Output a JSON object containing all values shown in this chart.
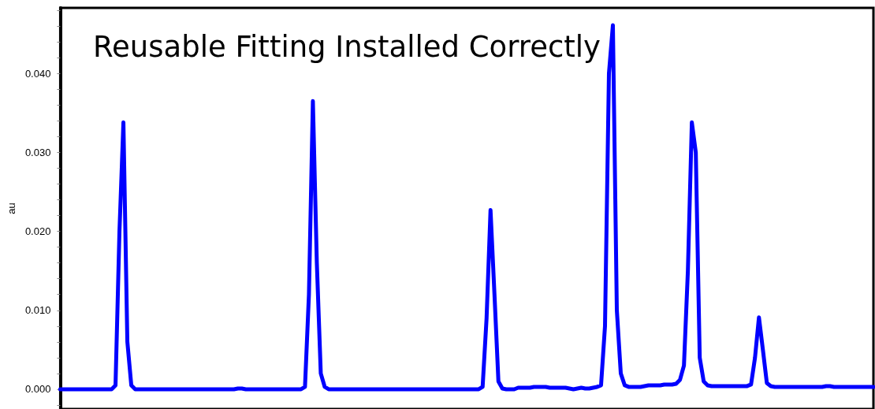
{
  "chart_data": {
    "type": "line",
    "title": "Reusable Fitting Installed Correctly",
    "ylabel": "au",
    "categories": [
      null,
      null,
      null,
      null,
      null,
      null,
      null,
      null,
      null,
      null,
      null,
      null,
      null,
      null,
      null,
      null,
      null,
      null,
      null,
      null,
      null,
      null,
      null,
      null,
      null,
      null,
      null,
      null,
      null,
      null,
      null,
      null,
      null,
      null,
      null,
      null,
      null,
      null,
      null,
      null,
      null,
      null,
      null,
      null,
      null,
      null,
      null,
      null,
      null,
      null,
      null,
      null,
      null,
      null,
      null,
      null,
      null,
      null,
      null,
      null,
      null,
      null,
      null,
      null,
      null,
      null,
      null,
      null,
      null,
      null,
      null,
      null,
      null,
      null,
      null,
      null,
      null,
      null,
      null,
      null,
      null,
      null,
      null,
      null,
      null,
      null,
      null,
      null,
      null,
      null,
      null,
      null,
      null,
      null,
      null,
      null,
      null,
      null,
      null,
      null,
      null,
      null,
      null,
      null,
      null,
      null,
      null,
      null,
      null,
      null,
      null,
      null,
      null,
      null,
      null,
      null,
      null,
      null,
      null,
      null,
      null,
      null,
      null,
      null,
      null,
      null,
      null,
      null,
      null,
      null,
      null,
      null,
      null,
      null,
      null,
      null,
      null,
      null,
      null,
      null,
      null,
      null,
      null,
      null,
      null,
      null,
      null,
      null,
      null,
      null,
      null,
      null,
      null,
      null,
      null,
      null,
      null,
      null,
      null,
      null,
      null,
      null,
      null,
      null,
      null,
      null,
      null,
      null,
      null,
      null,
      null,
      null,
      null,
      null,
      null,
      null,
      null,
      null,
      null,
      null,
      null,
      null,
      null,
      null,
      null,
      null,
      null,
      null,
      null,
      null,
      null,
      null,
      null,
      null,
      null,
      null,
      null,
      null,
      null,
      null,
      null,
      null,
      null,
      null,
      null,
      null,
      null
    ],
    "series": [
      {
        "color": "#0000ff",
        "values": [
          0,
          0,
          0,
          0,
          0,
          0,
          0,
          0,
          0,
          0,
          0,
          0,
          0,
          0,
          0.0005,
          0.02,
          0.0338,
          0.006,
          0.0005,
          0,
          0,
          0,
          0,
          0,
          0,
          0,
          0,
          0,
          0,
          0,
          0,
          0,
          0,
          0,
          0,
          0,
          0,
          0,
          0,
          0,
          0,
          0,
          0,
          0,
          0,
          0.0001,
          0.0001,
          0,
          0,
          0,
          0,
          0,
          0,
          0,
          0,
          0,
          0,
          0,
          0,
          0,
          0,
          0,
          0.0003,
          0.012,
          0.0365,
          0.016,
          0.002,
          0.0003,
          0,
          0,
          0,
          0,
          0,
          0,
          0,
          0,
          0,
          0,
          0,
          0,
          0,
          0,
          0,
          0,
          0,
          0,
          0,
          0,
          0,
          0,
          0,
          0,
          0,
          0,
          0,
          0,
          0,
          0,
          0,
          0,
          0,
          0,
          0,
          0,
          0,
          0,
          0,
          0.0003,
          0.009,
          0.0227,
          0.012,
          0.001,
          0.0001,
          0,
          0,
          0,
          0.0002,
          0.0002,
          0.0002,
          0.0002,
          0.0003,
          0.0003,
          0.0003,
          0.0003,
          0.0002,
          0.0002,
          0.0002,
          0.0002,
          0.0002,
          0.0001,
          0,
          0.0001,
          0.0002,
          0.0001,
          0.0001,
          0.0002,
          0.0003,
          0.0005,
          0.008,
          0.04,
          0.0461,
          0.01,
          0.002,
          0.0005,
          0.0003,
          0.0003,
          0.0003,
          0.0003,
          0.0004,
          0.0005,
          0.0005,
          0.0005,
          0.0005,
          0.0006,
          0.0006,
          0.0006,
          0.0007,
          0.0012,
          0.003,
          0.015,
          0.0338,
          0.03,
          0.004,
          0.001,
          0.0005,
          0.0004,
          0.0004,
          0.0004,
          0.0004,
          0.0004,
          0.0004,
          0.0004,
          0.0004,
          0.0004,
          0.0004,
          0.0006,
          0.004,
          0.0091,
          0.005,
          0.0008,
          0.0004,
          0.0003,
          0.0003,
          0.0003,
          0.0003,
          0.0003,
          0.0003,
          0.0003,
          0.0003,
          0.0003,
          0.0003,
          0.0003,
          0.0003,
          0.0003,
          0.0004,
          0.0004,
          0.0003,
          0.0003,
          0.0003,
          0.0003,
          0.0003,
          0.0003,
          0.0003,
          0.0003,
          0.0003,
          0.0003,
          0.0003
        ]
      }
    ],
    "ylim": [
      -0.0025,
      0.0483
    ],
    "yticks": [
      {
        "value": -0.002,
        "label": null
      },
      {
        "value": 0,
        "label": "0.000"
      },
      {
        "value": 0.002,
        "label": null
      },
      {
        "value": 0.004,
        "label": null
      },
      {
        "value": 0.006,
        "label": null
      },
      {
        "value": 0.008,
        "label": null
      },
      {
        "value": 0.01,
        "label": "0.010"
      },
      {
        "value": 0.012,
        "label": null
      },
      {
        "value": 0.014,
        "label": null
      },
      {
        "value": 0.016,
        "label": null
      },
      {
        "value": 0.018,
        "label": null
      },
      {
        "value": 0.02,
        "label": "0.020"
      },
      {
        "value": 0.022,
        "label": null
      },
      {
        "value": 0.024,
        "label": null
      },
      {
        "value": 0.026,
        "label": null
      },
      {
        "value": 0.028,
        "label": null
      },
      {
        "value": 0.03,
        "label": "0.030"
      },
      {
        "value": 0.032,
        "label": null
      },
      {
        "value": 0.034,
        "label": null
      },
      {
        "value": 0.036,
        "label": null
      },
      {
        "value": 0.038,
        "label": null
      },
      {
        "value": 0.04,
        "label": "0.040"
      },
      {
        "value": 0.042,
        "label": null
      },
      {
        "value": 0.044,
        "label": null
      },
      {
        "value": 0.046,
        "label": null
      },
      {
        "value": 0.048,
        "label": null
      }
    ],
    "grid": false,
    "line_style": "solid",
    "tick_labels": "y"
  }
}
